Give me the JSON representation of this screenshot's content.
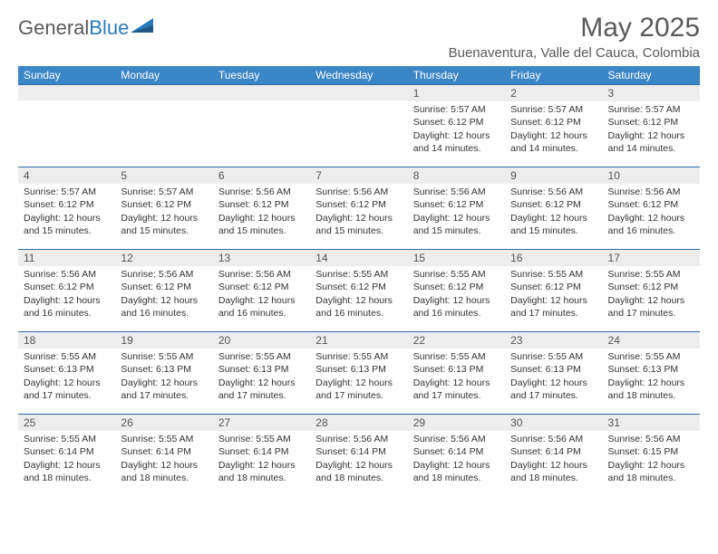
{
  "logo": {
    "text_gray": "General",
    "text_blue": "Blue"
  },
  "title": "May 2025",
  "location": "Buenaventura, Valle del Cauca, Colombia",
  "colors": {
    "header_bg": "#3b86c6",
    "header_text": "#ffffff",
    "daynum_bg": "#ededed",
    "border": "#2a6da8",
    "text": "#333333",
    "title_gray": "#5a5a5a"
  },
  "dow": [
    "Sunday",
    "Monday",
    "Tuesday",
    "Wednesday",
    "Thursday",
    "Friday",
    "Saturday"
  ],
  "weeks": [
    [
      {
        "n": "",
        "sr": "",
        "ss": "",
        "dl": ""
      },
      {
        "n": "",
        "sr": "",
        "ss": "",
        "dl": ""
      },
      {
        "n": "",
        "sr": "",
        "ss": "",
        "dl": ""
      },
      {
        "n": "",
        "sr": "",
        "ss": "",
        "dl": ""
      },
      {
        "n": "1",
        "sr": "Sunrise: 5:57 AM",
        "ss": "Sunset: 6:12 PM",
        "dl": "Daylight: 12 hours and 14 minutes."
      },
      {
        "n": "2",
        "sr": "Sunrise: 5:57 AM",
        "ss": "Sunset: 6:12 PM",
        "dl": "Daylight: 12 hours and 14 minutes."
      },
      {
        "n": "3",
        "sr": "Sunrise: 5:57 AM",
        "ss": "Sunset: 6:12 PM",
        "dl": "Daylight: 12 hours and 14 minutes."
      }
    ],
    [
      {
        "n": "4",
        "sr": "Sunrise: 5:57 AM",
        "ss": "Sunset: 6:12 PM",
        "dl": "Daylight: 12 hours and 15 minutes."
      },
      {
        "n": "5",
        "sr": "Sunrise: 5:57 AM",
        "ss": "Sunset: 6:12 PM",
        "dl": "Daylight: 12 hours and 15 minutes."
      },
      {
        "n": "6",
        "sr": "Sunrise: 5:56 AM",
        "ss": "Sunset: 6:12 PM",
        "dl": "Daylight: 12 hours and 15 minutes."
      },
      {
        "n": "7",
        "sr": "Sunrise: 5:56 AM",
        "ss": "Sunset: 6:12 PM",
        "dl": "Daylight: 12 hours and 15 minutes."
      },
      {
        "n": "8",
        "sr": "Sunrise: 5:56 AM",
        "ss": "Sunset: 6:12 PM",
        "dl": "Daylight: 12 hours and 15 minutes."
      },
      {
        "n": "9",
        "sr": "Sunrise: 5:56 AM",
        "ss": "Sunset: 6:12 PM",
        "dl": "Daylight: 12 hours and 15 minutes."
      },
      {
        "n": "10",
        "sr": "Sunrise: 5:56 AM",
        "ss": "Sunset: 6:12 PM",
        "dl": "Daylight: 12 hours and 16 minutes."
      }
    ],
    [
      {
        "n": "11",
        "sr": "Sunrise: 5:56 AM",
        "ss": "Sunset: 6:12 PM",
        "dl": "Daylight: 12 hours and 16 minutes."
      },
      {
        "n": "12",
        "sr": "Sunrise: 5:56 AM",
        "ss": "Sunset: 6:12 PM",
        "dl": "Daylight: 12 hours and 16 minutes."
      },
      {
        "n": "13",
        "sr": "Sunrise: 5:56 AM",
        "ss": "Sunset: 6:12 PM",
        "dl": "Daylight: 12 hours and 16 minutes."
      },
      {
        "n": "14",
        "sr": "Sunrise: 5:55 AM",
        "ss": "Sunset: 6:12 PM",
        "dl": "Daylight: 12 hours and 16 minutes."
      },
      {
        "n": "15",
        "sr": "Sunrise: 5:55 AM",
        "ss": "Sunset: 6:12 PM",
        "dl": "Daylight: 12 hours and 16 minutes."
      },
      {
        "n": "16",
        "sr": "Sunrise: 5:55 AM",
        "ss": "Sunset: 6:12 PM",
        "dl": "Daylight: 12 hours and 17 minutes."
      },
      {
        "n": "17",
        "sr": "Sunrise: 5:55 AM",
        "ss": "Sunset: 6:12 PM",
        "dl": "Daylight: 12 hours and 17 minutes."
      }
    ],
    [
      {
        "n": "18",
        "sr": "Sunrise: 5:55 AM",
        "ss": "Sunset: 6:13 PM",
        "dl": "Daylight: 12 hours and 17 minutes."
      },
      {
        "n": "19",
        "sr": "Sunrise: 5:55 AM",
        "ss": "Sunset: 6:13 PM",
        "dl": "Daylight: 12 hours and 17 minutes."
      },
      {
        "n": "20",
        "sr": "Sunrise: 5:55 AM",
        "ss": "Sunset: 6:13 PM",
        "dl": "Daylight: 12 hours and 17 minutes."
      },
      {
        "n": "21",
        "sr": "Sunrise: 5:55 AM",
        "ss": "Sunset: 6:13 PM",
        "dl": "Daylight: 12 hours and 17 minutes."
      },
      {
        "n": "22",
        "sr": "Sunrise: 5:55 AM",
        "ss": "Sunset: 6:13 PM",
        "dl": "Daylight: 12 hours and 17 minutes."
      },
      {
        "n": "23",
        "sr": "Sunrise: 5:55 AM",
        "ss": "Sunset: 6:13 PM",
        "dl": "Daylight: 12 hours and 17 minutes."
      },
      {
        "n": "24",
        "sr": "Sunrise: 5:55 AM",
        "ss": "Sunset: 6:13 PM",
        "dl": "Daylight: 12 hours and 18 minutes."
      }
    ],
    [
      {
        "n": "25",
        "sr": "Sunrise: 5:55 AM",
        "ss": "Sunset: 6:14 PM",
        "dl": "Daylight: 12 hours and 18 minutes."
      },
      {
        "n": "26",
        "sr": "Sunrise: 5:55 AM",
        "ss": "Sunset: 6:14 PM",
        "dl": "Daylight: 12 hours and 18 minutes."
      },
      {
        "n": "27",
        "sr": "Sunrise: 5:55 AM",
        "ss": "Sunset: 6:14 PM",
        "dl": "Daylight: 12 hours and 18 minutes."
      },
      {
        "n": "28",
        "sr": "Sunrise: 5:56 AM",
        "ss": "Sunset: 6:14 PM",
        "dl": "Daylight: 12 hours and 18 minutes."
      },
      {
        "n": "29",
        "sr": "Sunrise: 5:56 AM",
        "ss": "Sunset: 6:14 PM",
        "dl": "Daylight: 12 hours and 18 minutes."
      },
      {
        "n": "30",
        "sr": "Sunrise: 5:56 AM",
        "ss": "Sunset: 6:14 PM",
        "dl": "Daylight: 12 hours and 18 minutes."
      },
      {
        "n": "31",
        "sr": "Sunrise: 5:56 AM",
        "ss": "Sunset: 6:15 PM",
        "dl": "Daylight: 12 hours and 18 minutes."
      }
    ]
  ]
}
